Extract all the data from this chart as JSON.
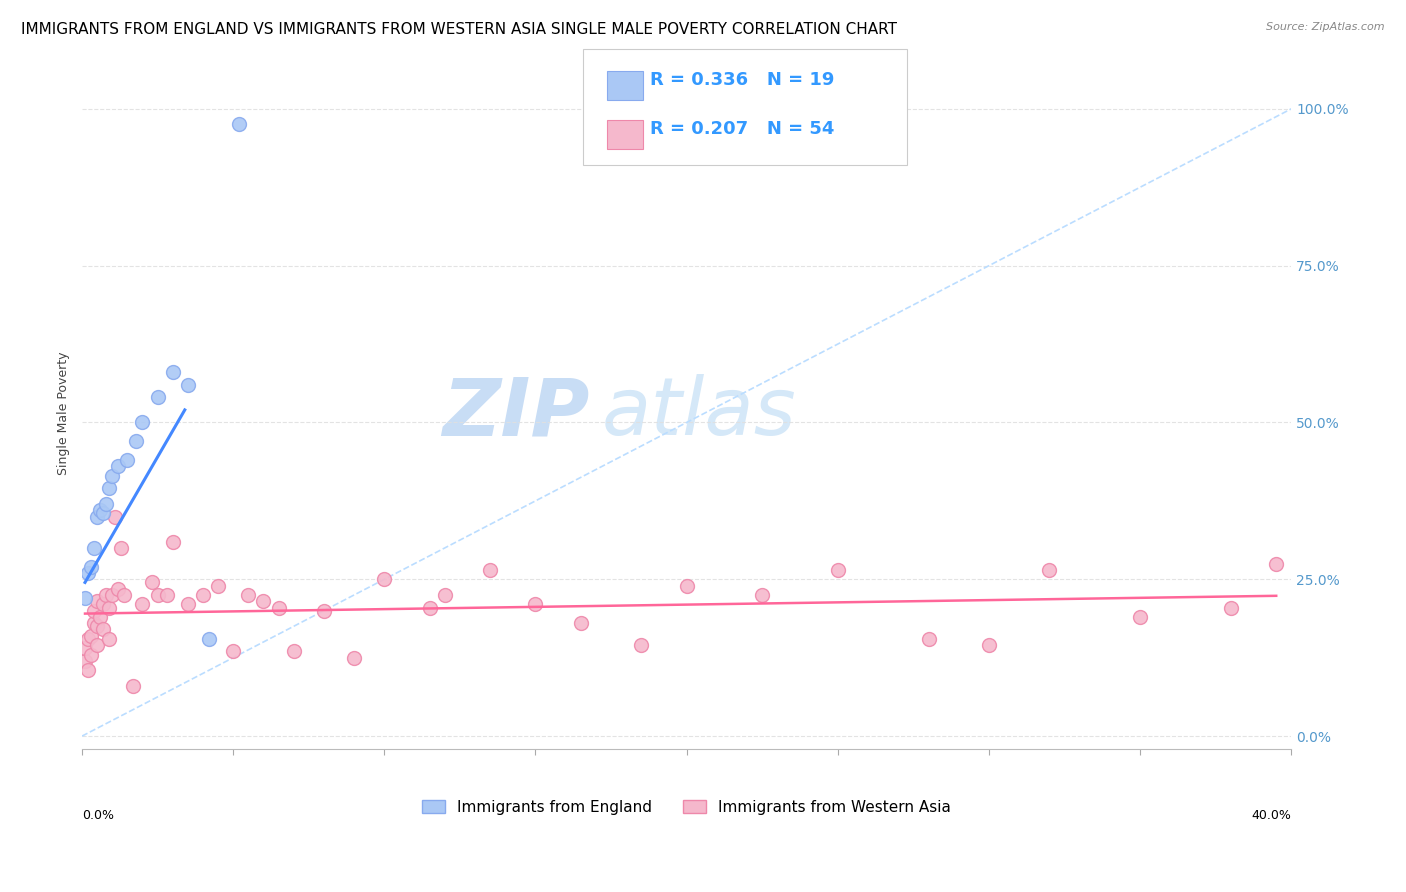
{
  "title": "IMMIGRANTS FROM ENGLAND VS IMMIGRANTS FROM WESTERN ASIA SINGLE MALE POVERTY CORRELATION CHART",
  "source": "Source: ZipAtlas.com",
  "ylabel": "Single Male Poverty",
  "xlim": [
    0.0,
    0.4
  ],
  "ylim": [
    -0.02,
    1.05
  ],
  "yticks": [
    0.0,
    0.25,
    0.5,
    0.75,
    1.0
  ],
  "ytick_labels": [
    "0.0%",
    "25.0%",
    "50.0%",
    "75.0%",
    "100.0%"
  ],
  "xtick_positions": [
    0.0,
    0.05,
    0.1,
    0.15,
    0.2,
    0.25,
    0.3,
    0.35,
    0.4
  ],
  "background_color": "#ffffff",
  "grid_color": "#e0e0e0",
  "england_color": "#aac8f5",
  "england_edge": "#88aaee",
  "western_asia_color": "#f5b8cc",
  "western_asia_edge": "#ee88aa",
  "trendline_england_color": "#4488ff",
  "trendline_wa_color": "#ff6699",
  "diagonal_color": "#bbddff",
  "england_x": [
    0.001,
    0.002,
    0.003,
    0.004,
    0.005,
    0.006,
    0.007,
    0.008,
    0.009,
    0.01,
    0.012,
    0.015,
    0.018,
    0.02,
    0.025,
    0.03,
    0.035,
    0.042,
    0.052
  ],
  "england_y": [
    0.22,
    0.26,
    0.27,
    0.3,
    0.35,
    0.36,
    0.355,
    0.37,
    0.395,
    0.415,
    0.43,
    0.44,
    0.47,
    0.5,
    0.54,
    0.58,
    0.56,
    0.155,
    0.975
  ],
  "england_trendline_x": [
    0.001,
    0.034
  ],
  "england_trendline_y": [
    0.245,
    0.52
  ],
  "wa_x": [
    0.001,
    0.001,
    0.002,
    0.002,
    0.003,
    0.003,
    0.004,
    0.004,
    0.005,
    0.005,
    0.006,
    0.007,
    0.008,
    0.009,
    0.01,
    0.012,
    0.014,
    0.017,
    0.02,
    0.023,
    0.025,
    0.028,
    0.03,
    0.035,
    0.04,
    0.045,
    0.05,
    0.055,
    0.06,
    0.065,
    0.07,
    0.08,
    0.09,
    0.1,
    0.115,
    0.12,
    0.135,
    0.15,
    0.165,
    0.185,
    0.2,
    0.225,
    0.25,
    0.28,
    0.3,
    0.32,
    0.35,
    0.38,
    0.395,
    0.005,
    0.007,
    0.009,
    0.011,
    0.013
  ],
  "wa_y": [
    0.12,
    0.14,
    0.105,
    0.155,
    0.16,
    0.13,
    0.18,
    0.2,
    0.175,
    0.215,
    0.19,
    0.21,
    0.225,
    0.205,
    0.225,
    0.235,
    0.225,
    0.08,
    0.21,
    0.245,
    0.225,
    0.225,
    0.31,
    0.21,
    0.225,
    0.24,
    0.135,
    0.225,
    0.215,
    0.205,
    0.135,
    0.2,
    0.125,
    0.25,
    0.205,
    0.225,
    0.265,
    0.21,
    0.18,
    0.145,
    0.24,
    0.225,
    0.265,
    0.155,
    0.145,
    0.265,
    0.19,
    0.205,
    0.275,
    0.145,
    0.17,
    0.155,
    0.35,
    0.3
  ],
  "wa_trendline_x": [
    0.001,
    0.395
  ],
  "wa_trendline_y": [
    0.135,
    0.21
  ],
  "marker_size": 100,
  "title_fontsize": 11,
  "axis_label_fontsize": 9,
  "tick_label_color": "#5599cc",
  "watermark_zip": "ZIP",
  "watermark_atlas": "atlas",
  "watermark_color_zip": "#c8ddf5",
  "watermark_color_atlas": "#d5e8f8",
  "watermark_fontsize": 58,
  "legend_R1": "R = 0.336",
  "legend_N1": "N = 19",
  "legend_R2": "R = 0.207",
  "legend_N2": "N = 54",
  "legend_color": "#3399ff",
  "legend_label1": "Immigrants from England",
  "legend_label2": "Immigrants from Western Asia"
}
